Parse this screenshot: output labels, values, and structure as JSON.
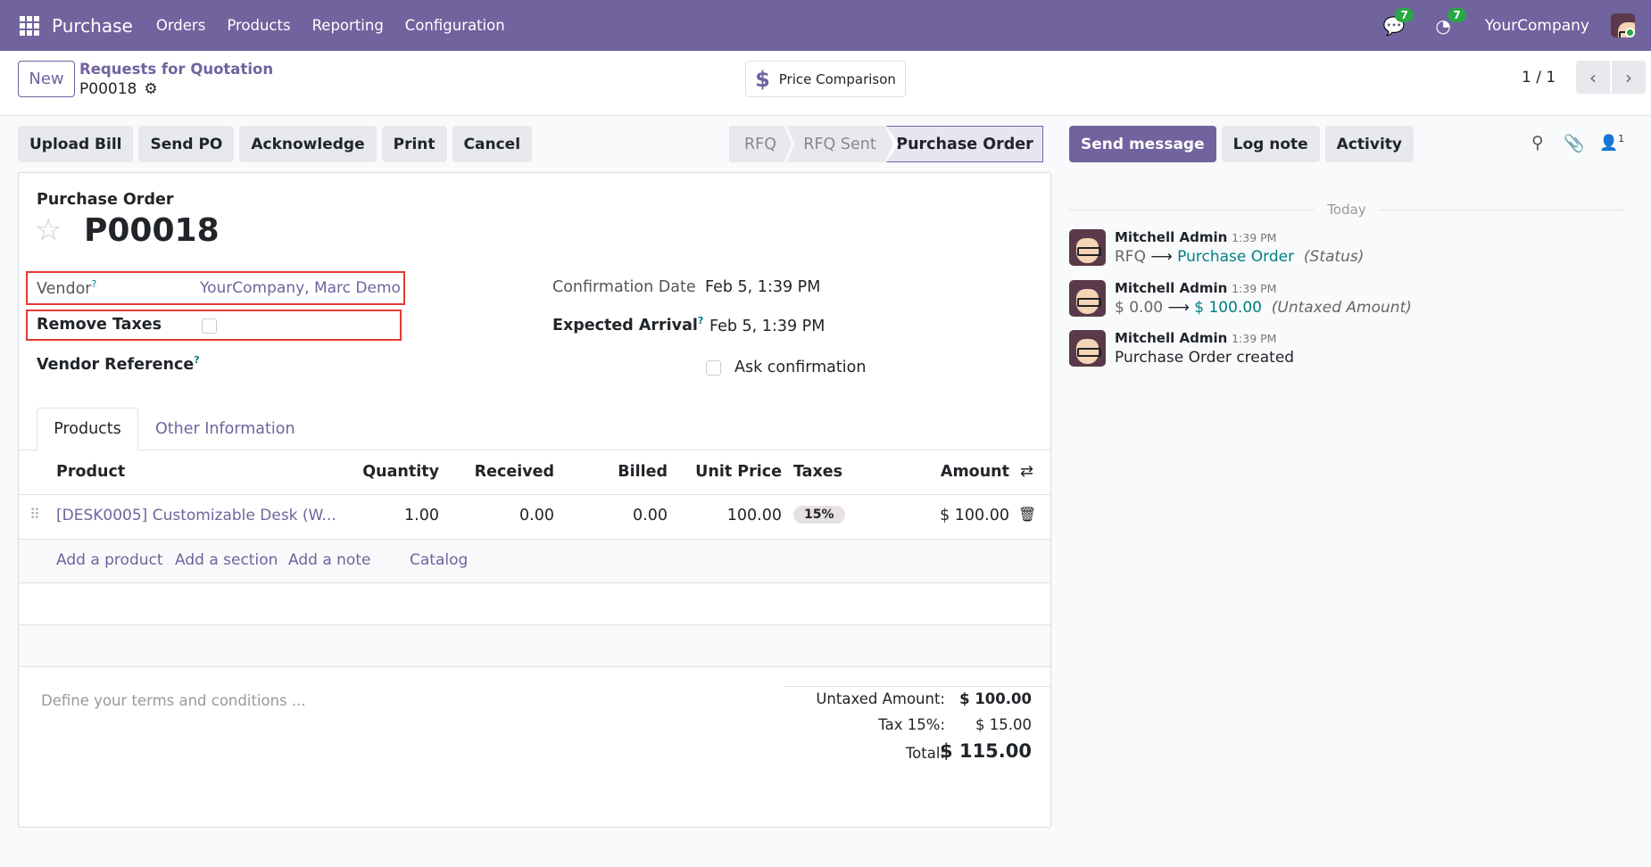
{
  "navbar": {
    "app": "Purchase",
    "menu": [
      "Orders",
      "Products",
      "Reporting",
      "Configuration"
    ],
    "messages_count": "7",
    "activities_count": "7",
    "company": "YourCompany",
    "brand_color": "#71639e"
  },
  "control": {
    "new_label": "New",
    "breadcrumb_parent": "Requests for Quotation",
    "breadcrumb_current": "P00018",
    "price_comparison": "Price Comparison",
    "pager": "1 / 1"
  },
  "actions": {
    "buttons": [
      "Upload Bill",
      "Send PO",
      "Acknowledge",
      "Print",
      "Cancel"
    ],
    "status_steps": [
      "RFQ",
      "RFQ Sent",
      "Purchase Order"
    ],
    "active_status": "Purchase Order"
  },
  "chatter": {
    "send_message": "Send message",
    "log_note": "Log note",
    "activity": "Activity",
    "followers_count": "1",
    "date_separator": "Today",
    "messages": [
      {
        "author": "Mitchell Admin",
        "time": "1:39 PM",
        "old": "RFQ",
        "new": "Purchase Order",
        "field": "(Status)"
      },
      {
        "author": "Mitchell Admin",
        "time": "1:39 PM",
        "old": "$ 0.00",
        "new": "$ 100.00",
        "field": "(Untaxed Amount)"
      },
      {
        "author": "Mitchell Admin",
        "time": "1:39 PM",
        "body": "Purchase Order created"
      }
    ]
  },
  "form": {
    "doc_type": "Purchase Order",
    "name": "P00018",
    "vendor_label": "Vendor",
    "vendor_value": "YourCompany, Marc Demo",
    "help": "?",
    "remove_taxes_label": "Remove Taxes",
    "vendor_ref_label": "Vendor Reference",
    "confirmation_date_label": "Confirmation Date",
    "confirmation_date": "Feb 5, 1:39 PM",
    "expected_arrival_label": "Expected Arrival",
    "expected_arrival": "Feb 5, 1:39 PM",
    "ask_confirmation": "Ask confirmation",
    "tabs": [
      "Products",
      "Other Information"
    ],
    "columns": [
      "Product",
      "Quantity",
      "Received",
      "Billed",
      "Unit Price",
      "Taxes",
      "Amount"
    ],
    "lines": [
      {
        "product": "[DESK0005] Customizable Desk (W...",
        "quantity": "1.00",
        "received": "0.00",
        "billed": "0.00",
        "unit_price": "100.00",
        "taxes": "15%",
        "amount": "$ 100.00"
      }
    ],
    "add_links": [
      "Add a product",
      "Add a section",
      "Add a note",
      "Catalog"
    ],
    "terms_placeholder": "Define your terms and conditions ...",
    "totals": {
      "untaxed_label": "Untaxed Amount:",
      "untaxed": "$ 100.00",
      "tax_label": "Tax 15%:",
      "tax": "$ 15.00",
      "total_label": "Total:",
      "total": "$ 115.00"
    }
  }
}
